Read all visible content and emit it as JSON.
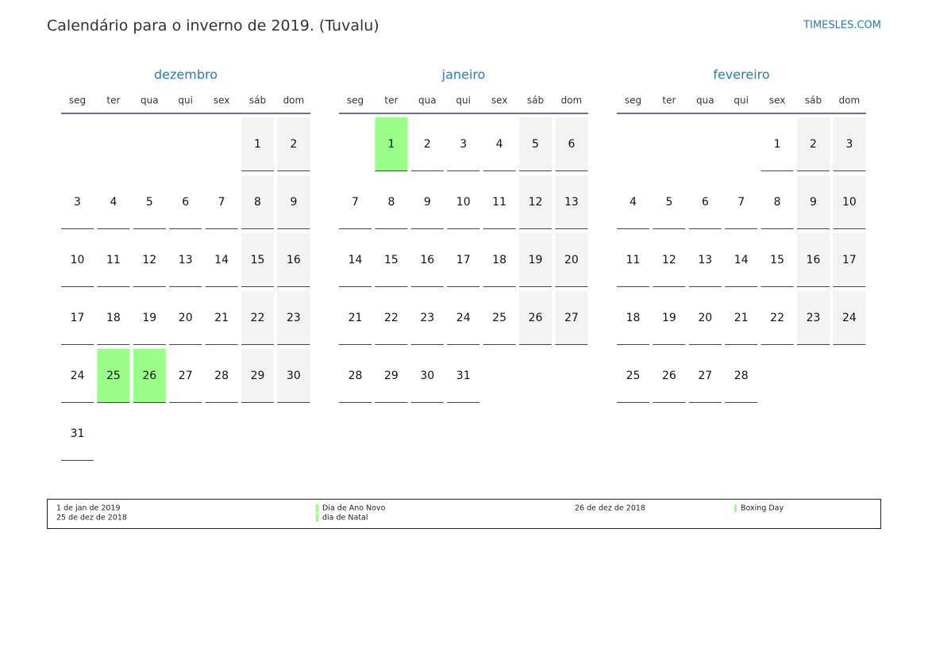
{
  "header": {
    "title": "Calendário para o inverno de 2019. (Tuvalu)",
    "site": "TIMESLES.COM"
  },
  "months": [
    {
      "name": "dezembro",
      "weekdays": [
        "seg",
        "ter",
        "qua",
        "qui",
        "sex",
        "sáb",
        "dom"
      ],
      "weeks": [
        [
          null,
          null,
          null,
          null,
          null,
          1,
          2
        ],
        [
          3,
          4,
          5,
          6,
          7,
          8,
          9
        ],
        [
          10,
          11,
          12,
          13,
          14,
          15,
          16
        ],
        [
          17,
          18,
          19,
          20,
          21,
          22,
          23
        ],
        [
          24,
          {
            "day": 25,
            "holiday": true
          },
          {
            "day": 26,
            "holiday": true
          },
          27,
          28,
          29,
          30
        ],
        [
          31,
          null,
          null,
          null,
          null,
          null,
          null
        ]
      ]
    },
    {
      "name": "janeiro",
      "weekdays": [
        "seg",
        "ter",
        "qua",
        "qui",
        "sex",
        "sáb",
        "dom"
      ],
      "weeks": [
        [
          null,
          {
            "day": 1,
            "holiday": true
          },
          2,
          3,
          4,
          5,
          6
        ],
        [
          7,
          8,
          9,
          10,
          11,
          12,
          13
        ],
        [
          14,
          15,
          16,
          17,
          18,
          19,
          20
        ],
        [
          21,
          22,
          23,
          24,
          25,
          26,
          27
        ],
        [
          28,
          29,
          30,
          31,
          null,
          null,
          null
        ]
      ]
    },
    {
      "name": "fevereiro",
      "weekdays": [
        "seg",
        "ter",
        "qua",
        "qui",
        "sex",
        "sáb",
        "dom"
      ],
      "weeks": [
        [
          null,
          null,
          null,
          null,
          1,
          2,
          3
        ],
        [
          4,
          5,
          6,
          7,
          8,
          9,
          10
        ],
        [
          11,
          12,
          13,
          14,
          15,
          16,
          17
        ],
        [
          18,
          19,
          20,
          21,
          22,
          23,
          24
        ],
        [
          25,
          26,
          27,
          28,
          null,
          null,
          null
        ]
      ]
    }
  ],
  "legend": [
    [
      {
        "date": "1 de jan de 2019",
        "name": "Dia de Ano Novo"
      },
      {
        "date": "25 de dez de 2018",
        "name": "dia de Natal"
      }
    ],
    [
      {
        "date": "26 de dez de 2018",
        "name": "Boxing Day"
      }
    ]
  ]
}
